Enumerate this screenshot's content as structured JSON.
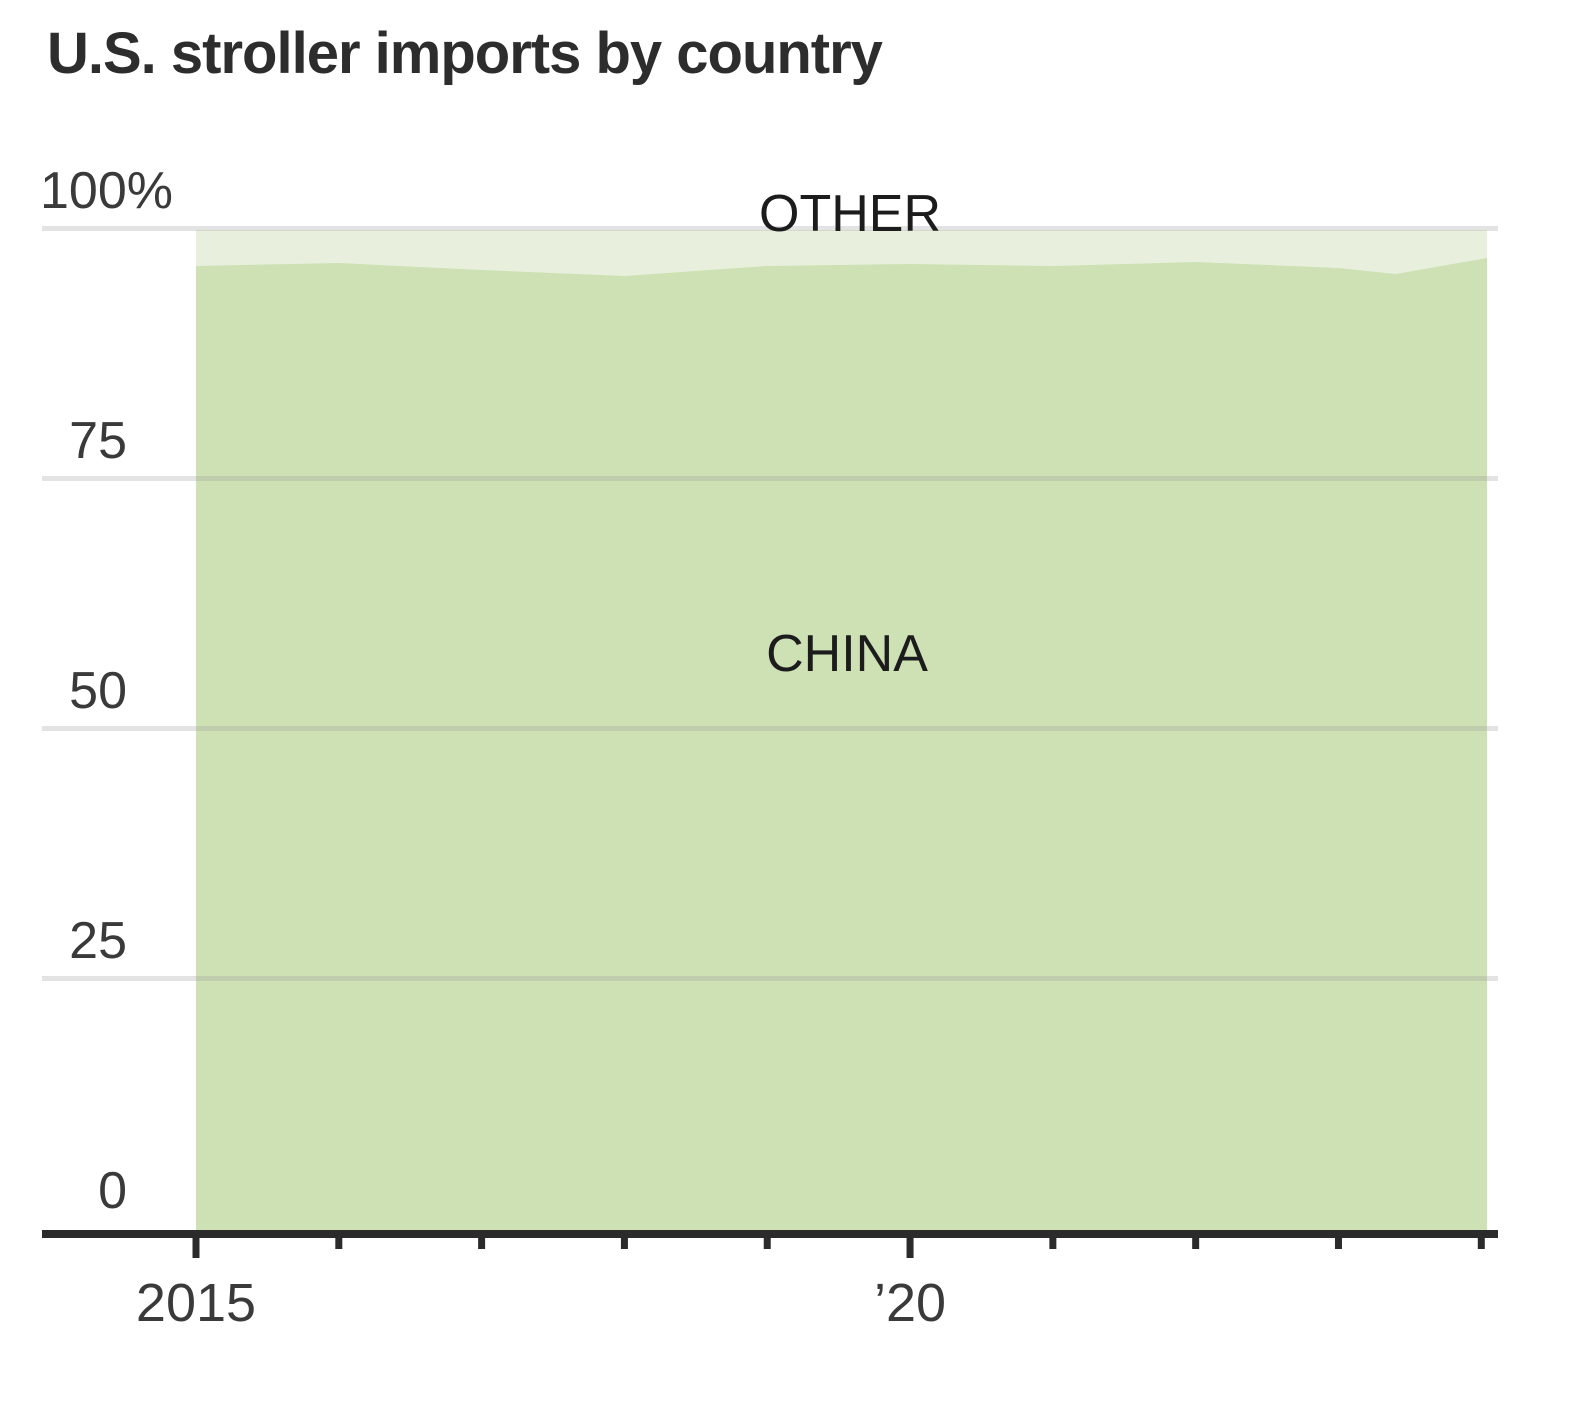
{
  "header": {
    "title": "U.S. stroller imports by country"
  },
  "chart_data": {
    "type": "area",
    "stacked": true,
    "unit": "percent share",
    "title": "U.S. stroller imports by country",
    "grid": "horizontal",
    "legend": "inline-area-labels",
    "ylim": [
      0,
      100
    ],
    "x": [
      2015,
      2016,
      2017,
      2018,
      2019,
      2020,
      2021,
      2022,
      2023,
      2023.4,
      2024.04
    ],
    "series": [
      {
        "name": "CHINA",
        "color": "#cde1b4",
        "values": [
          96.4,
          96.7,
          96.0,
          95.4,
          96.4,
          96.6,
          96.4,
          96.8,
          96.2,
          95.6,
          97.2
        ]
      },
      {
        "name": "OTHER",
        "color": "#e8f0dd",
        "values": [
          3.6,
          3.3,
          4.0,
          4.6,
          3.6,
          3.4,
          3.6,
          3.2,
          3.8,
          4.4,
          2.8
        ]
      }
    ],
    "yticks": [
      {
        "value": 100,
        "label": "100%"
      },
      {
        "value": 75,
        "label": "75"
      },
      {
        "value": 50,
        "label": "50"
      },
      {
        "value": 25,
        "label": "25"
      },
      {
        "value": 0,
        "label": "0"
      }
    ],
    "xticks": [
      {
        "value": 2015,
        "label": "2015",
        "major": true
      },
      {
        "value": 2016
      },
      {
        "value": 2017
      },
      {
        "value": 2018
      },
      {
        "value": 2019
      },
      {
        "value": 2020,
        "label": "’20",
        "major": true
      },
      {
        "value": 2021
      },
      {
        "value": 2022
      },
      {
        "value": 2023
      },
      {
        "value": 2024
      }
    ],
    "axis_color": "#2b2b2b",
    "grid_color": "#999999",
    "grid_opacity": 0.28,
    "label_color": "#3a3a3a"
  }
}
